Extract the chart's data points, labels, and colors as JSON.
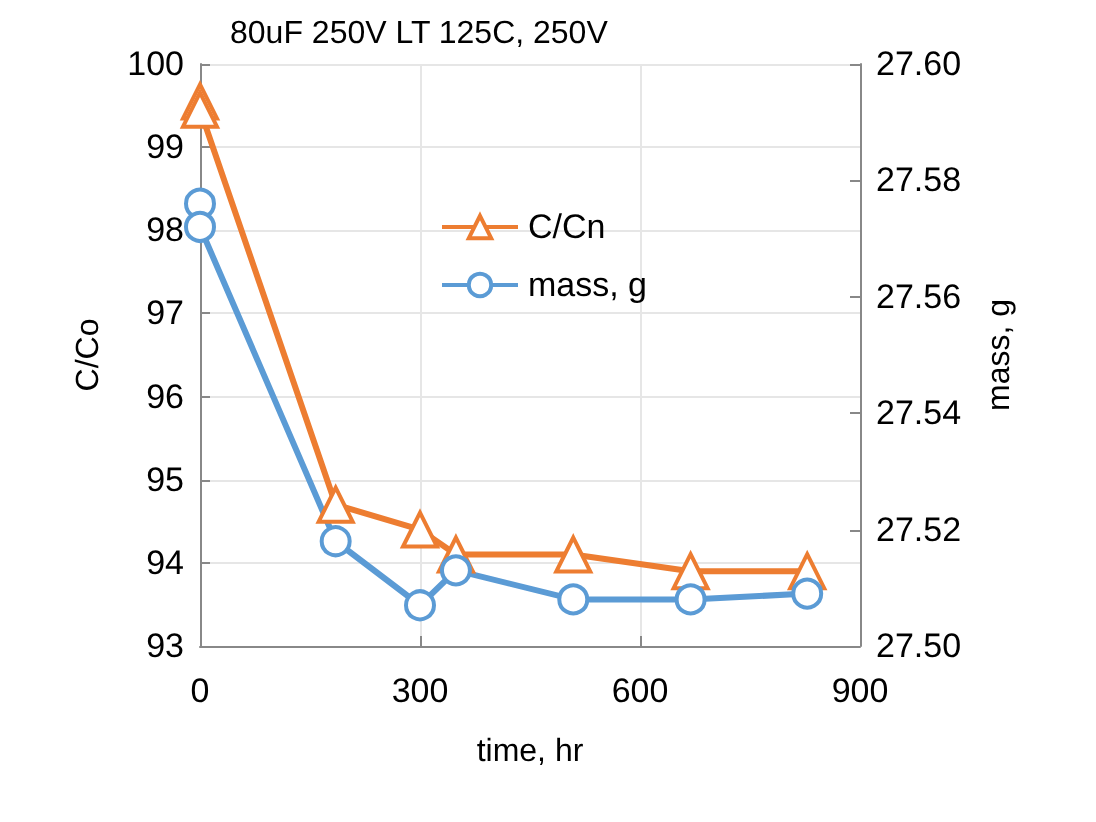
{
  "chart_data": {
    "type": "line",
    "title": "80uF 250V LT 125C, 250V",
    "xlabel": "time, hr",
    "ylabel": "C/Co",
    "y2label": "mass, g",
    "series": [
      {
        "name": "C/Cn",
        "color": "#ed7d31",
        "marker": "triangle",
        "x": [
          0,
          0,
          185,
          300,
          349,
          509,
          669,
          828
        ],
        "values": [
          99.55,
          99.45,
          94.7,
          94.4,
          94.1,
          94.1,
          93.9,
          93.9
        ]
      },
      {
        "name": "mass, g",
        "color": "#5b9bd5",
        "marker": "circle",
        "axis": "y2",
        "x": [
          0,
          0,
          185,
          300,
          349,
          509,
          669,
          828
        ],
        "values": [
          27.576,
          27.572,
          27.518,
          27.507,
          27.513,
          27.508,
          27.508,
          27.509
        ]
      }
    ],
    "xlim": [
      0,
      900
    ],
    "xticks": [
      0,
      300,
      600,
      900
    ],
    "ylim": [
      93,
      100
    ],
    "yticks": [
      93,
      94,
      95,
      96,
      97,
      98,
      99,
      100
    ],
    "y2lim": [
      27.5,
      27.6
    ],
    "y2ticks": [
      {
        "value": 27.5,
        "label": "27.50"
      },
      {
        "value": 27.52,
        "label": "27.52"
      },
      {
        "value": 27.54,
        "label": "27.54"
      },
      {
        "value": 27.56,
        "label": "27.56"
      },
      {
        "value": 27.58,
        "label": "27.58"
      },
      {
        "value": 27.6,
        "label": "27.60"
      }
    ],
    "grid": true,
    "legend": "top"
  }
}
